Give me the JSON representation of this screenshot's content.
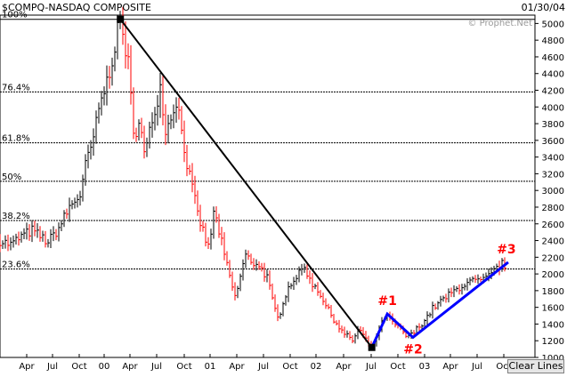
{
  "header": {
    "symbol_title": "$COMPQ-NASDAQ COMPOSITE",
    "date": "01/30/04",
    "watermark": "© Prophet.Net"
  },
  "clear_lines_label": "Clear Lines",
  "chart_data": {
    "type": "bar",
    "subtype": "ohlc-price-bars",
    "title": "$COMPQ-NASDAQ COMPOSITE",
    "y_axis_side": "right",
    "ylim": [
      1000,
      5100
    ],
    "y_ticks": [
      "5000",
      "4800",
      "4600",
      "4400",
      "4200",
      "4000",
      "3800",
      "3600",
      "3400",
      "3200",
      "3000",
      "2800",
      "2600",
      "2400",
      "2200",
      "2000",
      "1800",
      "1600",
      "1400",
      "1200",
      "1000"
    ],
    "x_tick_labels": [
      "Apr",
      "Jul",
      "Oct",
      "00",
      "Apr",
      "Jul",
      "Oct",
      "01",
      "Apr",
      "Jul",
      "Oct",
      "02",
      "Apr",
      "Jul",
      "Oct",
      "03",
      "Apr",
      "Jul",
      "Oct"
    ],
    "bar_colors": {
      "up": "#000000",
      "down": "#ff0000"
    },
    "fib_levels": [
      {
        "label": "100%",
        "value": 5050
      },
      {
        "label": "76.4%",
        "value": 4180
      },
      {
        "label": "61.8%",
        "value": 3570
      },
      {
        "label": "50%",
        "value": 3110
      },
      {
        "label": "38.2%",
        "value": 2640
      },
      {
        "label": "23.6%",
        "value": 2060
      }
    ],
    "price_path": [
      {
        "x": 0,
        "y": 2400
      },
      {
        "x": 0.02,
        "y": 2350
      },
      {
        "x": 0.04,
        "y": 2450
      },
      {
        "x": 0.06,
        "y": 2520
      },
      {
        "x": 0.09,
        "y": 2380
      },
      {
        "x": 0.11,
        "y": 2550
      },
      {
        "x": 0.13,
        "y": 2800
      },
      {
        "x": 0.15,
        "y": 2950
      },
      {
        "x": 0.16,
        "y": 3300
      },
      {
        "x": 0.17,
        "y": 3500
      },
      {
        "x": 0.18,
        "y": 3800
      },
      {
        "x": 0.19,
        "y": 4100
      },
      {
        "x": 0.2,
        "y": 4300
      },
      {
        "x": 0.21,
        "y": 4600
      },
      {
        "x": 0.225,
        "y": 5050
      },
      {
        "x": 0.24,
        "y": 4500
      },
      {
        "x": 0.25,
        "y": 3600
      },
      {
        "x": 0.26,
        "y": 3900
      },
      {
        "x": 0.27,
        "y": 3400
      },
      {
        "x": 0.28,
        "y": 3700
      },
      {
        "x": 0.29,
        "y": 4000
      },
      {
        "x": 0.3,
        "y": 4250
      },
      {
        "x": 0.31,
        "y": 3700
      },
      {
        "x": 0.32,
        "y": 3900
      },
      {
        "x": 0.33,
        "y": 4100
      },
      {
        "x": 0.34,
        "y": 3700
      },
      {
        "x": 0.35,
        "y": 3300
      },
      {
        "x": 0.36,
        "y": 3000
      },
      {
        "x": 0.37,
        "y": 2700
      },
      {
        "x": 0.38,
        "y": 2500
      },
      {
        "x": 0.39,
        "y": 2300
      },
      {
        "x": 0.4,
        "y": 2750
      },
      {
        "x": 0.41,
        "y": 2500
      },
      {
        "x": 0.42,
        "y": 2200
      },
      {
        "x": 0.43,
        "y": 1950
      },
      {
        "x": 0.44,
        "y": 1700
      },
      {
        "x": 0.45,
        "y": 2000
      },
      {
        "x": 0.46,
        "y": 2250
      },
      {
        "x": 0.47,
        "y": 2100
      },
      {
        "x": 0.48,
        "y": 2150
      },
      {
        "x": 0.49,
        "y": 2050
      },
      {
        "x": 0.5,
        "y": 1950
      },
      {
        "x": 0.51,
        "y": 1650
      },
      {
        "x": 0.52,
        "y": 1450
      },
      {
        "x": 0.53,
        "y": 1700
      },
      {
        "x": 0.54,
        "y": 1850
      },
      {
        "x": 0.55,
        "y": 1950
      },
      {
        "x": 0.56,
        "y": 2000
      },
      {
        "x": 0.57,
        "y": 2100
      },
      {
        "x": 0.58,
        "y": 1900
      },
      {
        "x": 0.59,
        "y": 1850
      },
      {
        "x": 0.6,
        "y": 1750
      },
      {
        "x": 0.61,
        "y": 1600
      },
      {
        "x": 0.62,
        "y": 1500
      },
      {
        "x": 0.63,
        "y": 1400
      },
      {
        "x": 0.64,
        "y": 1300
      },
      {
        "x": 0.65,
        "y": 1250
      },
      {
        "x": 0.66,
        "y": 1200
      },
      {
        "x": 0.67,
        "y": 1350
      },
      {
        "x": 0.68,
        "y": 1250
      },
      {
        "x": 0.69,
        "y": 1150
      },
      {
        "x": 0.695,
        "y": 1120
      },
      {
        "x": 0.71,
        "y": 1350
      },
      {
        "x": 0.72,
        "y": 1500
      },
      {
        "x": 0.73,
        "y": 1450
      },
      {
        "x": 0.74,
        "y": 1380
      },
      {
        "x": 0.75,
        "y": 1320
      },
      {
        "x": 0.76,
        "y": 1250
      },
      {
        "x": 0.77,
        "y": 1270
      },
      {
        "x": 0.78,
        "y": 1350
      },
      {
        "x": 0.79,
        "y": 1420
      },
      {
        "x": 0.8,
        "y": 1500
      },
      {
        "x": 0.81,
        "y": 1600
      },
      {
        "x": 0.82,
        "y": 1650
      },
      {
        "x": 0.83,
        "y": 1700
      },
      {
        "x": 0.84,
        "y": 1750
      },
      {
        "x": 0.85,
        "y": 1800
      },
      {
        "x": 0.86,
        "y": 1850
      },
      {
        "x": 0.87,
        "y": 1880
      },
      {
        "x": 0.88,
        "y": 1900
      },
      {
        "x": 0.89,
        "y": 1920
      },
      {
        "x": 0.9,
        "y": 1900
      },
      {
        "x": 0.91,
        "y": 1950
      },
      {
        "x": 0.92,
        "y": 2000
      },
      {
        "x": 0.93,
        "y": 2080
      },
      {
        "x": 0.94,
        "y": 2120
      },
      {
        "x": 0.95,
        "y": 2100
      }
    ],
    "downtrend_line": [
      {
        "x": 0.225,
        "y": 5050
      },
      {
        "x": 0.695,
        "y": 1120
      }
    ],
    "wave_line": [
      {
        "x": 0.695,
        "y": 1120
      },
      {
        "x": 0.724,
        "y": 1520
      },
      {
        "x": 0.772,
        "y": 1240
      },
      {
        "x": 0.95,
        "y": 2140
      }
    ],
    "wave_labels": [
      {
        "label": "#1",
        "x": 0.724,
        "y": 1520
      },
      {
        "label": "#2",
        "x": 0.772,
        "y": 1240
      },
      {
        "label": "#3",
        "x": 0.95,
        "y": 2140
      }
    ],
    "pivot_markers": [
      {
        "x": 0.225,
        "y": 5050
      },
      {
        "x": 0.695,
        "y": 1120
      }
    ]
  }
}
